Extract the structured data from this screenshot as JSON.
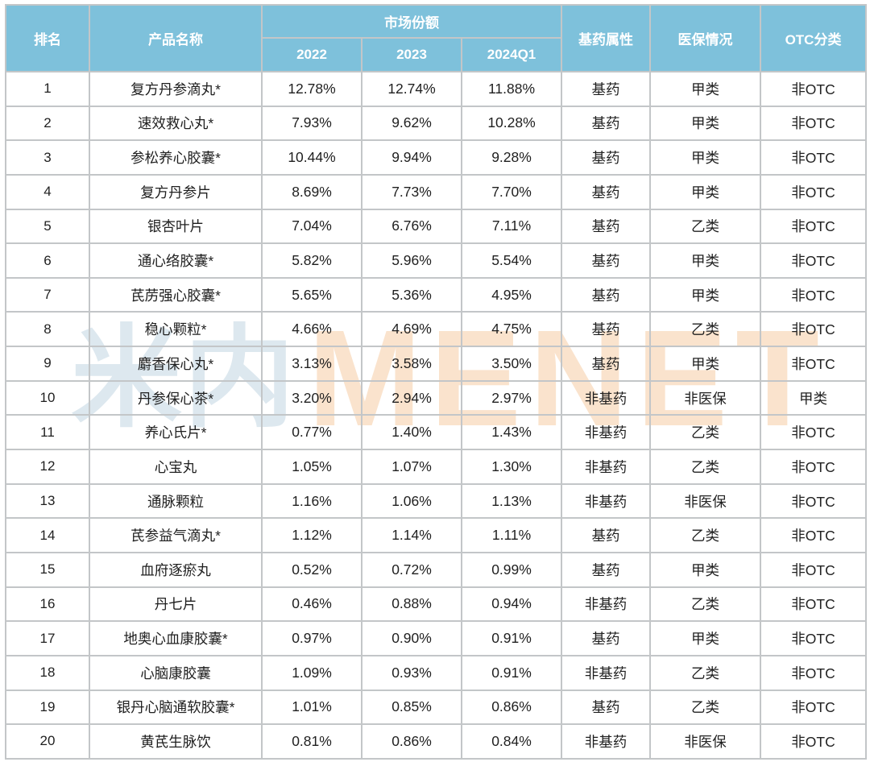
{
  "colors": {
    "header_bg": "#7ec1db",
    "header_text": "#ffffff",
    "body_text": "#1f1f1f",
    "grid_border": "#c3c6c8",
    "watermark_cn": "#dde8ef",
    "watermark_en": "#fae3cd"
  },
  "watermark": {
    "part_cn": "米内",
    "part_en": "MENET"
  },
  "table": {
    "headers": {
      "rank": "排名",
      "product": "产品名称",
      "market_share_group": "市场份额",
      "y2022": "2022",
      "y2023": "2023",
      "q2024": "2024Q1",
      "essential": "基药属性",
      "insurance": "医保情况",
      "otc": "OTC分类"
    },
    "rows": [
      {
        "rank": "1",
        "product": "复方丹参滴丸*",
        "s2022": "12.78%",
        "s2023": "12.74%",
        "s2024q1": "11.88%",
        "essential": "基药",
        "insurance": "甲类",
        "otc": "非OTC"
      },
      {
        "rank": "2",
        "product": "速效救心丸*",
        "s2022": "7.93%",
        "s2023": "9.62%",
        "s2024q1": "10.28%",
        "essential": "基药",
        "insurance": "甲类",
        "otc": "非OTC"
      },
      {
        "rank": "3",
        "product": "参松养心胶囊*",
        "s2022": "10.44%",
        "s2023": "9.94%",
        "s2024q1": "9.28%",
        "essential": "基药",
        "insurance": "甲类",
        "otc": "非OTC"
      },
      {
        "rank": "4",
        "product": "复方丹参片",
        "s2022": "8.69%",
        "s2023": "7.73%",
        "s2024q1": "7.70%",
        "essential": "基药",
        "insurance": "甲类",
        "otc": "非OTC"
      },
      {
        "rank": "5",
        "product": "银杏叶片",
        "s2022": "7.04%",
        "s2023": "6.76%",
        "s2024q1": "7.11%",
        "essential": "基药",
        "insurance": "乙类",
        "otc": "非OTC"
      },
      {
        "rank": "6",
        "product": "通心络胶囊*",
        "s2022": "5.82%",
        "s2023": "5.96%",
        "s2024q1": "5.54%",
        "essential": "基药",
        "insurance": "甲类",
        "otc": "非OTC"
      },
      {
        "rank": "7",
        "product": "芪苈强心胶囊*",
        "s2022": "5.65%",
        "s2023": "5.36%",
        "s2024q1": "4.95%",
        "essential": "基药",
        "insurance": "甲类",
        "otc": "非OTC"
      },
      {
        "rank": "8",
        "product": "稳心颗粒*",
        "s2022": "4.66%",
        "s2023": "4.69%",
        "s2024q1": "4.75%",
        "essential": "基药",
        "insurance": "乙类",
        "otc": "非OTC"
      },
      {
        "rank": "9",
        "product": "麝香保心丸*",
        "s2022": "3.13%",
        "s2023": "3.58%",
        "s2024q1": "3.50%",
        "essential": "基药",
        "insurance": "甲类",
        "otc": "非OTC"
      },
      {
        "rank": "10",
        "product": "丹参保心茶*",
        "s2022": "3.20%",
        "s2023": "2.94%",
        "s2024q1": "2.97%",
        "essential": "非基药",
        "insurance": "非医保",
        "otc": "甲类"
      },
      {
        "rank": "11",
        "product": "养心氏片*",
        "s2022": "0.77%",
        "s2023": "1.40%",
        "s2024q1": "1.43%",
        "essential": "非基药",
        "insurance": "乙类",
        "otc": "非OTC"
      },
      {
        "rank": "12",
        "product": "心宝丸",
        "s2022": "1.05%",
        "s2023": "1.07%",
        "s2024q1": "1.30%",
        "essential": "非基药",
        "insurance": "乙类",
        "otc": "非OTC"
      },
      {
        "rank": "13",
        "product": "通脉颗粒",
        "s2022": "1.16%",
        "s2023": "1.06%",
        "s2024q1": "1.13%",
        "essential": "非基药",
        "insurance": "非医保",
        "otc": "非OTC"
      },
      {
        "rank": "14",
        "product": "芪参益气滴丸*",
        "s2022": "1.12%",
        "s2023": "1.14%",
        "s2024q1": "1.11%",
        "essential": "基药",
        "insurance": "乙类",
        "otc": "非OTC"
      },
      {
        "rank": "15",
        "product": "血府逐瘀丸",
        "s2022": "0.52%",
        "s2023": "0.72%",
        "s2024q1": "0.99%",
        "essential": "基药",
        "insurance": "甲类",
        "otc": "非OTC"
      },
      {
        "rank": "16",
        "product": "丹七片",
        "s2022": "0.46%",
        "s2023": "0.88%",
        "s2024q1": "0.94%",
        "essential": "非基药",
        "insurance": "乙类",
        "otc": "非OTC"
      },
      {
        "rank": "17",
        "product": "地奥心血康胶囊*",
        "s2022": "0.97%",
        "s2023": "0.90%",
        "s2024q1": "0.91%",
        "essential": "基药",
        "insurance": "甲类",
        "otc": "非OTC"
      },
      {
        "rank": "18",
        "product": "心脑康胶囊",
        "s2022": "1.09%",
        "s2023": "0.93%",
        "s2024q1": "0.91%",
        "essential": "非基药",
        "insurance": "乙类",
        "otc": "非OTC"
      },
      {
        "rank": "19",
        "product": "银丹心脑通软胶囊*",
        "s2022": "1.01%",
        "s2023": "0.85%",
        "s2024q1": "0.86%",
        "essential": "基药",
        "insurance": "乙类",
        "otc": "非OTC"
      },
      {
        "rank": "20",
        "product": "黄芪生脉饮",
        "s2022": "0.81%",
        "s2023": "0.86%",
        "s2024q1": "0.84%",
        "essential": "非基药",
        "insurance": "非医保",
        "otc": "非OTC"
      }
    ]
  }
}
